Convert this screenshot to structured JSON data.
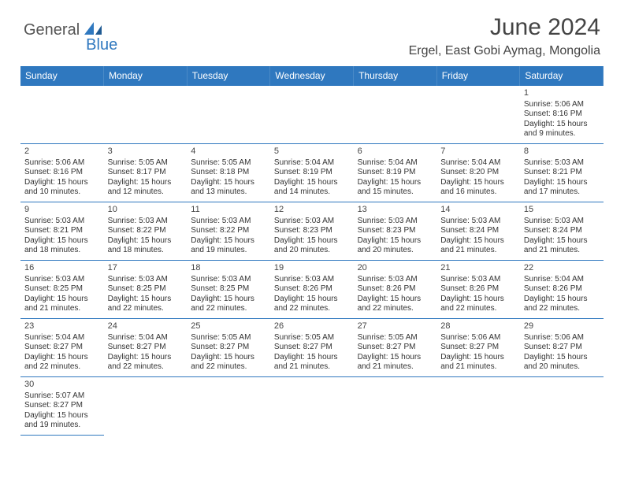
{
  "brand": {
    "a": "General",
    "b": "Blue"
  },
  "title": "June 2024",
  "location": "Ergel, East Gobi Aymag, Mongolia",
  "colors": {
    "header_bg": "#2f78bf",
    "header_fg": "#ffffff",
    "rule": "#2f78bf"
  },
  "weekdays": [
    "Sunday",
    "Monday",
    "Tuesday",
    "Wednesday",
    "Thursday",
    "Friday",
    "Saturday"
  ],
  "first_weekday_index": 6,
  "days": [
    {
      "n": 1,
      "sr": "5:06 AM",
      "ss": "8:16 PM",
      "dl": "15 hours and 9 minutes."
    },
    {
      "n": 2,
      "sr": "5:06 AM",
      "ss": "8:16 PM",
      "dl": "15 hours and 10 minutes."
    },
    {
      "n": 3,
      "sr": "5:05 AM",
      "ss": "8:17 PM",
      "dl": "15 hours and 12 minutes."
    },
    {
      "n": 4,
      "sr": "5:05 AM",
      "ss": "8:18 PM",
      "dl": "15 hours and 13 minutes."
    },
    {
      "n": 5,
      "sr": "5:04 AM",
      "ss": "8:19 PM",
      "dl": "15 hours and 14 minutes."
    },
    {
      "n": 6,
      "sr": "5:04 AM",
      "ss": "8:19 PM",
      "dl": "15 hours and 15 minutes."
    },
    {
      "n": 7,
      "sr": "5:04 AM",
      "ss": "8:20 PM",
      "dl": "15 hours and 16 minutes."
    },
    {
      "n": 8,
      "sr": "5:03 AM",
      "ss": "8:21 PM",
      "dl": "15 hours and 17 minutes."
    },
    {
      "n": 9,
      "sr": "5:03 AM",
      "ss": "8:21 PM",
      "dl": "15 hours and 18 minutes."
    },
    {
      "n": 10,
      "sr": "5:03 AM",
      "ss": "8:22 PM",
      "dl": "15 hours and 18 minutes."
    },
    {
      "n": 11,
      "sr": "5:03 AM",
      "ss": "8:22 PM",
      "dl": "15 hours and 19 minutes."
    },
    {
      "n": 12,
      "sr": "5:03 AM",
      "ss": "8:23 PM",
      "dl": "15 hours and 20 minutes."
    },
    {
      "n": 13,
      "sr": "5:03 AM",
      "ss": "8:23 PM",
      "dl": "15 hours and 20 minutes."
    },
    {
      "n": 14,
      "sr": "5:03 AM",
      "ss": "8:24 PM",
      "dl": "15 hours and 21 minutes."
    },
    {
      "n": 15,
      "sr": "5:03 AM",
      "ss": "8:24 PM",
      "dl": "15 hours and 21 minutes."
    },
    {
      "n": 16,
      "sr": "5:03 AM",
      "ss": "8:25 PM",
      "dl": "15 hours and 21 minutes."
    },
    {
      "n": 17,
      "sr": "5:03 AM",
      "ss": "8:25 PM",
      "dl": "15 hours and 22 minutes."
    },
    {
      "n": 18,
      "sr": "5:03 AM",
      "ss": "8:25 PM",
      "dl": "15 hours and 22 minutes."
    },
    {
      "n": 19,
      "sr": "5:03 AM",
      "ss": "8:26 PM",
      "dl": "15 hours and 22 minutes."
    },
    {
      "n": 20,
      "sr": "5:03 AM",
      "ss": "8:26 PM",
      "dl": "15 hours and 22 minutes."
    },
    {
      "n": 21,
      "sr": "5:03 AM",
      "ss": "8:26 PM",
      "dl": "15 hours and 22 minutes."
    },
    {
      "n": 22,
      "sr": "5:04 AM",
      "ss": "8:26 PM",
      "dl": "15 hours and 22 minutes."
    },
    {
      "n": 23,
      "sr": "5:04 AM",
      "ss": "8:27 PM",
      "dl": "15 hours and 22 minutes."
    },
    {
      "n": 24,
      "sr": "5:04 AM",
      "ss": "8:27 PM",
      "dl": "15 hours and 22 minutes."
    },
    {
      "n": 25,
      "sr": "5:05 AM",
      "ss": "8:27 PM",
      "dl": "15 hours and 22 minutes."
    },
    {
      "n": 26,
      "sr": "5:05 AM",
      "ss": "8:27 PM",
      "dl": "15 hours and 21 minutes."
    },
    {
      "n": 27,
      "sr": "5:05 AM",
      "ss": "8:27 PM",
      "dl": "15 hours and 21 minutes."
    },
    {
      "n": 28,
      "sr": "5:06 AM",
      "ss": "8:27 PM",
      "dl": "15 hours and 21 minutes."
    },
    {
      "n": 29,
      "sr": "5:06 AM",
      "ss": "8:27 PM",
      "dl": "15 hours and 20 minutes."
    },
    {
      "n": 30,
      "sr": "5:07 AM",
      "ss": "8:27 PM",
      "dl": "15 hours and 19 minutes."
    }
  ],
  "labels": {
    "sunrise": "Sunrise:",
    "sunset": "Sunset:",
    "daylight": "Daylight:"
  }
}
